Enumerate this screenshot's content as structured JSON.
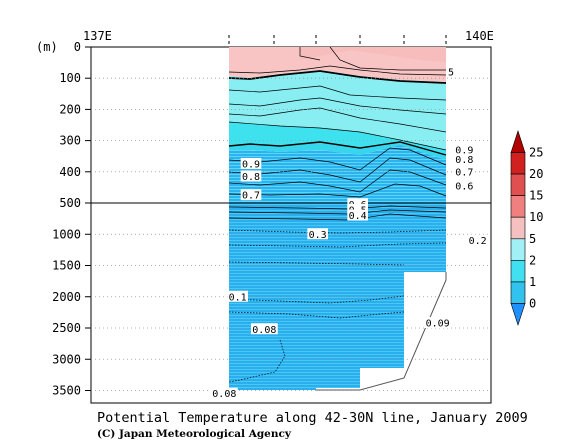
{
  "chart_data": {
    "type": "heatmap",
    "title": "Potential Temperature along 42-30N line, January 2009",
    "credit": "(C) Japan Meteorological Agency",
    "x_axis": {
      "ticks": [
        {
          "label": "137E",
          "lon": 137
        },
        {
          "label": "140E",
          "lon": 140
        }
      ],
      "xlim": [
        137,
        140
      ]
    },
    "y_axis": {
      "unit_label": "(m)",
      "upper_panel": {
        "ticks": [
          0,
          100,
          200,
          300,
          400,
          500
        ],
        "ylim": [
          0,
          500
        ]
      },
      "lower_panel": {
        "ticks": [
          500,
          1000,
          1500,
          2000,
          2500,
          3000,
          3500
        ],
        "ylim": [
          500,
          3700
        ]
      }
    },
    "colorbar": {
      "levels": [
        "0",
        "1",
        "2",
        "5",
        "10",
        "15",
        "20",
        "25"
      ],
      "colors": [
        "#1e90ff",
        "#31c2ee",
        "#40e0f0",
        "#a0f0f5",
        "#f5c0c0",
        "#f08080",
        "#e05050",
        "#d02020",
        "#b00000"
      ]
    },
    "contour_labels": [
      {
        "text": "5",
        "lon": 139.7,
        "depth": 80
      },
      {
        "text": "0.9",
        "lon": 139.8,
        "depth": 330
      },
      {
        "text": "0.8",
        "lon": 139.8,
        "depth": 360
      },
      {
        "text": "0.7",
        "lon": 139.8,
        "depth": 400
      },
      {
        "text": "0.6",
        "lon": 139.8,
        "depth": 445
      },
      {
        "text": "0.9",
        "lon": 138.2,
        "depth": 375
      },
      {
        "text": "0.8",
        "lon": 138.2,
        "depth": 415
      },
      {
        "text": "0.7",
        "lon": 138.2,
        "depth": 475
      },
      {
        "text": "0.6",
        "lon": 139.0,
        "depth": 520
      },
      {
        "text": "0.5",
        "lon": 139.0,
        "depth": 610
      },
      {
        "text": "0.4",
        "lon": 139.0,
        "depth": 700
      },
      {
        "text": "0.3",
        "lon": 138.7,
        "depth": 1000
      },
      {
        "text": "0.2",
        "lon": 139.9,
        "depth": 1100
      },
      {
        "text": "0.1",
        "lon": 138.1,
        "depth": 2000
      },
      {
        "text": "0.09",
        "lon": 139.6,
        "depth": 2420
      },
      {
        "text": "0.08",
        "lon": 138.3,
        "depth": 2520
      },
      {
        "text": "0.08",
        "lon": 138.0,
        "depth": 3550
      }
    ]
  }
}
